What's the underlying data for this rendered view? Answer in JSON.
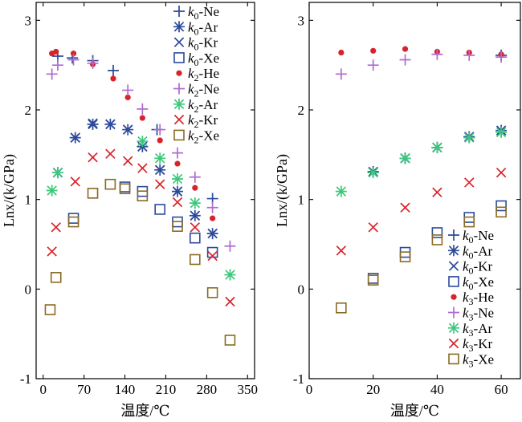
{
  "chart_data": [
    {
      "type": "scatter",
      "xlabel": "温度/℃",
      "ylabel": "Lnx/(k/GPa)",
      "xlim": [
        -12,
        362
      ],
      "ylim": [
        -1,
        3.2
      ],
      "xticks": [
        0,
        70,
        140,
        210,
        280,
        350
      ],
      "yticks": [
        -1,
        0,
        1,
        2,
        3
      ],
      "legend_position": "top-right",
      "series": [
        {
          "name": "k0-Ne",
          "label_main": "k",
          "label_sub": "0",
          "label_rest": "-Ne",
          "marker": "plus",
          "color": "#2b4a9a",
          "points": [
            [
              25,
              2.6
            ],
            [
              50,
              2.58
            ],
            [
              85,
              2.55
            ],
            [
              120,
              2.44
            ],
            [
              195,
              1.78
            ],
            [
              290,
              1.01
            ]
          ]
        },
        {
          "name": "k0-Ar",
          "label_main": "k",
          "label_sub": "0",
          "label_rest": "-Ar",
          "marker": "asterisk",
          "color": "#2b4a9a",
          "points": [
            [
              25,
              1.3
            ],
            [
              55,
              1.69
            ],
            [
              85,
              1.84
            ],
            [
              115,
              1.84
            ],
            [
              145,
              1.78
            ],
            [
              170,
              1.59
            ],
            [
              200,
              1.33
            ],
            [
              230,
              1.09
            ],
            [
              260,
              0.82
            ],
            [
              290,
              0.62
            ]
          ]
        },
        {
          "name": "k0-Kr",
          "label_main": "k",
          "label_sub": "0",
          "label_rest": "-Kr",
          "marker": "cross",
          "color": "#2b4a9a",
          "points": [
            [
              25,
              1.3
            ],
            [
              55,
              1.69
            ],
            [
              85,
              1.85
            ],
            [
              115,
              1.84
            ],
            [
              145,
              1.78
            ],
            [
              170,
              1.59
            ],
            [
              200,
              1.33
            ],
            [
              230,
              1.09
            ],
            [
              260,
              0.82
            ],
            [
              290,
              0.62
            ]
          ]
        },
        {
          "name": "k0-Xe",
          "label_main": "k",
          "label_sub": "0",
          "label_rest": "-Xe",
          "marker": "square",
          "color": "#2b4a9a",
          "points": [
            [
              52,
              0.79
            ],
            [
              140,
              1.14
            ],
            [
              170,
              1.09
            ],
            [
              200,
              0.89
            ],
            [
              230,
              0.75
            ],
            [
              260,
              0.57
            ],
            [
              290,
              0.41
            ]
          ]
        },
        {
          "name": "k2-He",
          "label_main": "k",
          "label_sub": "2",
          "label_rest": "-He",
          "marker": "dot",
          "color": "#d8232a",
          "points": [
            [
              15,
              2.63
            ],
            [
              22,
              2.65
            ],
            [
              52,
              2.63
            ],
            [
              85,
              2.51
            ],
            [
              120,
              2.35
            ],
            [
              145,
              2.14
            ],
            [
              170,
              1.91
            ],
            [
              200,
              1.66
            ],
            [
              230,
              1.4
            ],
            [
              260,
              1.13
            ],
            [
              290,
              0.79
            ]
          ]
        },
        {
          "name": "k2-Ne",
          "label_main": "k",
          "label_sub": "2",
          "label_rest": "-Ne",
          "marker": "plus",
          "color": "#b06ad0",
          "points": [
            [
              15,
              2.4
            ],
            [
              25,
              2.5
            ],
            [
              52,
              2.56
            ],
            [
              85,
              2.52
            ],
            [
              145,
              2.22
            ],
            [
              170,
              2.01
            ],
            [
              200,
              1.78
            ],
            [
              230,
              1.52
            ],
            [
              260,
              1.25
            ],
            [
              290,
              0.91
            ],
            [
              320,
              0.48
            ]
          ]
        },
        {
          "name": "k2-Ar",
          "label_main": "k",
          "label_sub": "2",
          "label_rest": "-Ar",
          "marker": "asterisk",
          "color": "#3cc87a",
          "points": [
            [
              15,
              1.1
            ],
            [
              25,
              1.3
            ],
            [
              170,
              1.65
            ],
            [
              200,
              1.46
            ],
            [
              230,
              1.23
            ],
            [
              260,
              0.96
            ],
            [
              320,
              0.16
            ]
          ]
        },
        {
          "name": "k2-Kr",
          "label_main": "k",
          "label_sub": "2",
          "label_rest": "-Kr",
          "marker": "cross",
          "color": "#d8232a",
          "points": [
            [
              15,
              0.42
            ],
            [
              22,
              0.69
            ],
            [
              55,
              1.2
            ],
            [
              85,
              1.47
            ],
            [
              115,
              1.51
            ],
            [
              145,
              1.43
            ],
            [
              170,
              1.35
            ],
            [
              200,
              1.17
            ],
            [
              230,
              0.97
            ],
            [
              260,
              0.69
            ],
            [
              290,
              0.37
            ],
            [
              320,
              -0.14
            ]
          ]
        },
        {
          "name": "k2-Xe",
          "label_main": "k",
          "label_sub": "2",
          "label_rest": "-Xe",
          "marker": "square",
          "color": "#8a6a22",
          "points": [
            [
              12,
              -0.23
            ],
            [
              22,
              0.13
            ],
            [
              52,
              0.75
            ],
            [
              85,
              1.07
            ],
            [
              115,
              1.17
            ],
            [
              140,
              1.12
            ],
            [
              170,
              1.04
            ],
            [
              230,
              0.7
            ],
            [
              260,
              0.33
            ],
            [
              290,
              -0.04
            ],
            [
              320,
              -0.57
            ]
          ]
        }
      ]
    },
    {
      "type": "scatter",
      "xlabel": "温度/℃",
      "ylabel": "Lnx/(k/GPa)",
      "xlim": [
        0,
        66
      ],
      "ylim": [
        -1,
        3.2
      ],
      "xticks": [
        0,
        20,
        40,
        60
      ],
      "yticks": [
        -1,
        0,
        1,
        2,
        3
      ],
      "legend_position": "bottom-right",
      "series": [
        {
          "name": "k0-Ne",
          "label_main": "k",
          "label_sub": "0",
          "label_rest": "-Ne",
          "marker": "plus",
          "color": "#2b4a9a",
          "points": [
            [
              20,
              1.31
            ],
            [
              30,
              1.46
            ],
            [
              40,
              1.58
            ],
            [
              50,
              1.7
            ],
            [
              60,
              2.61
            ]
          ]
        },
        {
          "name": "k0-Ar",
          "label_main": "k",
          "label_sub": "0",
          "label_rest": "-Ar",
          "marker": "asterisk",
          "color": "#2b4a9a",
          "points": [
            [
              20,
              1.31
            ],
            [
              30,
              1.46
            ],
            [
              40,
              1.58
            ],
            [
              50,
              1.7
            ],
            [
              60,
              1.77
            ]
          ]
        },
        {
          "name": "k0-Kr",
          "label_main": "k",
          "label_sub": "0",
          "label_rest": "-Kr",
          "marker": "cross",
          "color": "#2b4a9a",
          "points": [
            [
              20,
              1.31
            ],
            [
              30,
              1.46
            ],
            [
              40,
              1.58
            ],
            [
              50,
              1.7
            ],
            [
              60,
              1.77
            ]
          ]
        },
        {
          "name": "k0-Xe",
          "label_main": "k",
          "label_sub": "0",
          "label_rest": "-Xe",
          "marker": "square",
          "color": "#2b4a9a",
          "points": [
            [
              20,
              0.12
            ],
            [
              30,
              0.41
            ],
            [
              40,
              0.63
            ],
            [
              50,
              0.8
            ],
            [
              60,
              0.93
            ]
          ]
        },
        {
          "name": "k3-He",
          "label_main": "k",
          "label_sub": "3",
          "label_rest": "-He",
          "marker": "dot",
          "color": "#d8232a",
          "points": [
            [
              10,
              2.64
            ],
            [
              20,
              2.66
            ],
            [
              30,
              2.68
            ],
            [
              40,
              2.65
            ],
            [
              50,
              2.64
            ],
            [
              60,
              2.62
            ]
          ]
        },
        {
          "name": "k3-Ne",
          "label_main": "k",
          "label_sub": "3",
          "label_rest": "-Ne",
          "marker": "plus",
          "color": "#b06ad0",
          "points": [
            [
              10,
              2.4
            ],
            [
              20,
              2.5
            ],
            [
              30,
              2.56
            ],
            [
              40,
              2.62
            ],
            [
              50,
              2.61
            ],
            [
              60,
              2.59
            ]
          ]
        },
        {
          "name": "k3-Ar",
          "label_main": "k",
          "label_sub": "3",
          "label_rest": "-Ar",
          "marker": "asterisk",
          "color": "#3cc87a",
          "points": [
            [
              10,
              1.09
            ],
            [
              20,
              1.3
            ],
            [
              30,
              1.46
            ],
            [
              40,
              1.58
            ],
            [
              50,
              1.69
            ],
            [
              60,
              1.75
            ]
          ]
        },
        {
          "name": "k3-Kr",
          "label_main": "k",
          "label_sub": "3",
          "label_rest": "-Kr",
          "marker": "cross",
          "color": "#d8232a",
          "points": [
            [
              10,
              0.43
            ],
            [
              20,
              0.69
            ],
            [
              30,
              0.91
            ],
            [
              40,
              1.08
            ],
            [
              50,
              1.19
            ],
            [
              60,
              1.3
            ]
          ]
        },
        {
          "name": "k3-Xe",
          "label_main": "k",
          "label_sub": "3",
          "label_rest": "-Xe",
          "marker": "square",
          "color": "#8a6a22",
          "points": [
            [
              10,
              -0.21
            ],
            [
              20,
              0.1
            ],
            [
              30,
              0.36
            ],
            [
              40,
              0.55
            ],
            [
              50,
              0.75
            ],
            [
              60,
              0.86
            ]
          ]
        }
      ]
    }
  ]
}
